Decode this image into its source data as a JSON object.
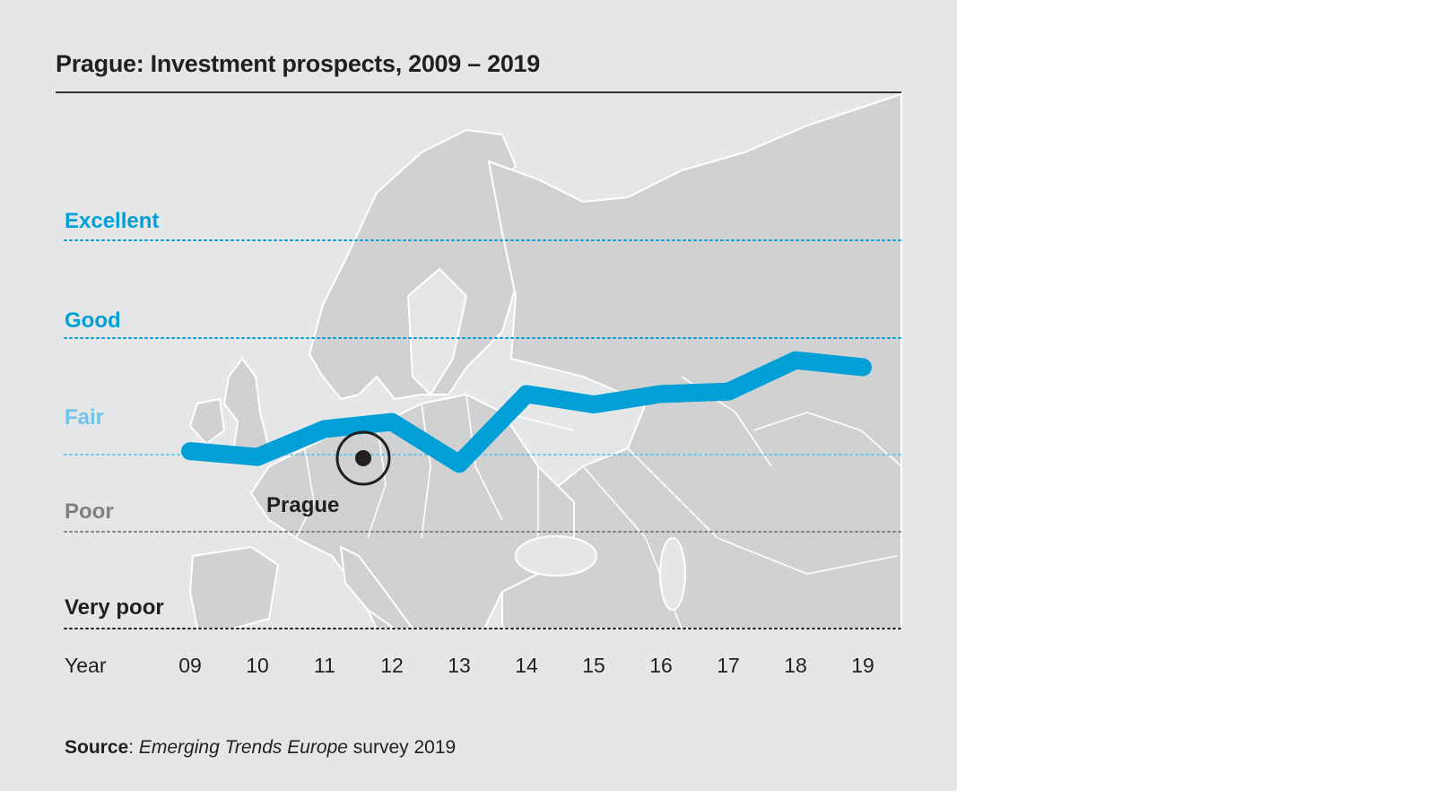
{
  "title": "Prague: Investment prospects, 2009 – 2019",
  "source": {
    "label": "Source",
    "separator": ": ",
    "publication": "Emerging Trends Europe",
    "rest": " survey 2019"
  },
  "marker": {
    "city": "Prague",
    "marker_icon": "location-target-icon"
  },
  "colors": {
    "line": "#009fd6",
    "excellent": "#009fd6",
    "good": "#009fd6",
    "fair": "#6fc4e8",
    "poor": "#808080",
    "very_poor": "#231f20",
    "panel": "#e5e6e8",
    "land": "#d0d1d3"
  },
  "chart_data": {
    "type": "line",
    "title": "Prague: Investment prospects, 2009 – 2019",
    "xlabel": "Year",
    "ylabel": "",
    "x": [
      "09",
      "10",
      "11",
      "12",
      "13",
      "14",
      "15",
      "16",
      "17",
      "18",
      "19"
    ],
    "y_scale_note": "1 = Very poor, 2 = Poor, 3 = Fair, 4 = Good, 5 = Excellent",
    "y_categories": [
      "Very poor",
      "Poor",
      "Fair",
      "Good",
      "Excellent"
    ],
    "ylim": [
      1,
      5
    ],
    "series": [
      {
        "name": "Prague",
        "values": [
          3.03,
          2.97,
          3.22,
          3.28,
          2.88,
          3.52,
          3.43,
          3.52,
          3.54,
          3.81,
          3.75
        ]
      }
    ],
    "grid": true,
    "legend": "none",
    "background": "map of Europe"
  }
}
